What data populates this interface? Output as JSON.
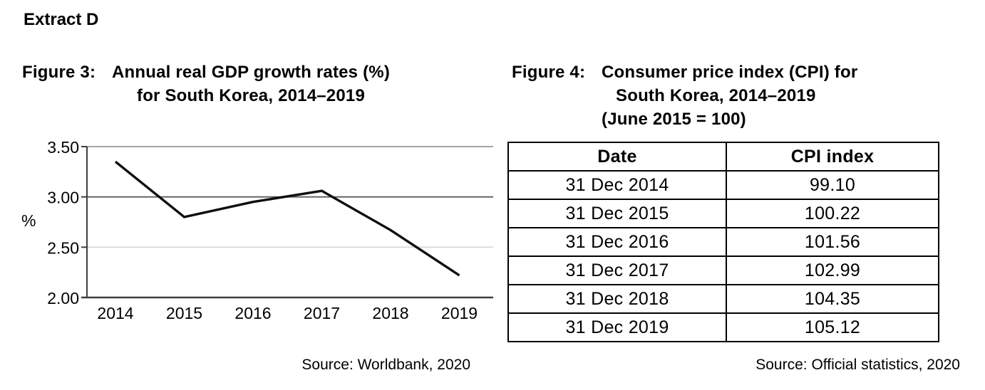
{
  "extract_title": "Extract D",
  "figure3": {
    "label": "Figure 3:",
    "title_lines": [
      "Annual real GDP growth rates (%)",
      "for South Korea, 2014–2019"
    ],
    "source": "Source: Worldbank, 2020"
  },
  "figure4": {
    "label": "Figure 4:",
    "title_lines": [
      "Consumer price index (CPI) for",
      "South Korea, 2014–2019",
      "(June 2015 = 100)"
    ],
    "source": "Source: Official statistics, 2020"
  },
  "chart_data": {
    "type": "line",
    "title": "Annual real GDP growth rates (%) for South Korea, 2014–2019",
    "categories": [
      "2014",
      "2015",
      "2016",
      "2017",
      "2018",
      "2019"
    ],
    "values": [
      3.35,
      2.8,
      2.95,
      3.06,
      2.67,
      2.22
    ],
    "xlabel": "",
    "ylabel": "%",
    "ylim": [
      2.0,
      3.5
    ],
    "yticks": [
      3.5,
      3.0,
      2.5,
      2.0
    ],
    "ytick_labels": [
      "3.50",
      "3.00",
      "2.50",
      "2.00"
    ],
    "grid": true,
    "legend": "none",
    "line_color": "#0f0f0f",
    "axis_color": "#3f3f3f",
    "gridline_colors": [
      "#9a9a9a",
      "#5c5c5c",
      "#d9d9d9",
      "none"
    ]
  },
  "table": {
    "headers": [
      "Date",
      "CPI index"
    ],
    "rows": [
      {
        "date": "31 Dec 2014",
        "cpi": "99.10"
      },
      {
        "date": "31 Dec 2015",
        "cpi": "100.22"
      },
      {
        "date": "31 Dec 2016",
        "cpi": "101.56"
      },
      {
        "date": "31 Dec 2017",
        "cpi": "102.99"
      },
      {
        "date": "31 Dec 2018",
        "cpi": "104.35"
      },
      {
        "date": "31 Dec 2019",
        "cpi": "105.12"
      }
    ]
  }
}
